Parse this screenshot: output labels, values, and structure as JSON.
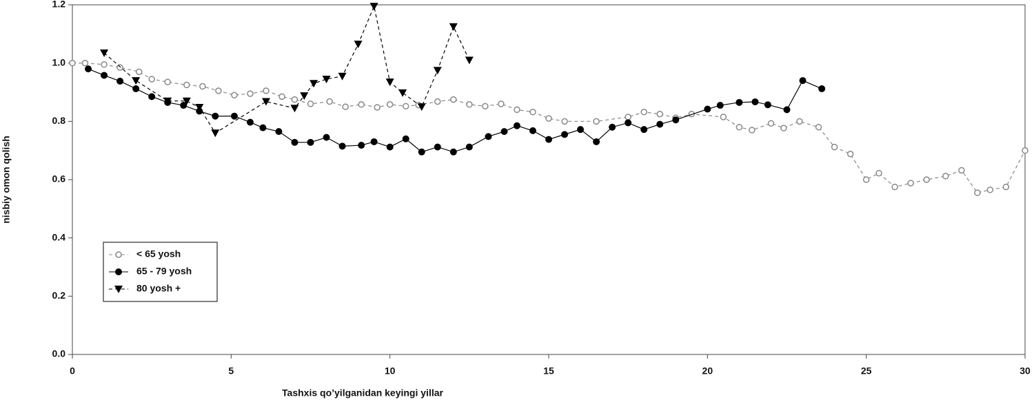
{
  "chart_data": {
    "type": "line",
    "xlabel": "Tashxis qo’yilganidan keyingi yillar",
    "ylabel": "nisbiy omon qolish",
    "xlim": [
      0,
      30
    ],
    "ylim": [
      0,
      1.2
    ],
    "xticks": [
      0,
      5,
      10,
      15,
      20,
      25,
      30
    ],
    "yticks": [
      {
        "value": 0,
        "label": "0.0"
      },
      0.2,
      0.4,
      0.6,
      0.8,
      {
        "value": 1,
        "label": "1.0"
      },
      1.2
    ],
    "legend": "lower left",
    "series": [
      {
        "name": "< 65 yosh",
        "color": "#888888",
        "marker": "open-circle",
        "dashed": true,
        "x": [
          0,
          0.4,
          1,
          1.5,
          2.1,
          2.5,
          3,
          3.6,
          4.1,
          4.6,
          5.1,
          5.6,
          6.1,
          6.6,
          7,
          7.5,
          8.1,
          8.6,
          9.1,
          9.6,
          10,
          10.5,
          10.9,
          11.5,
          12,
          12.5,
          13,
          13.5,
          14,
          14.5,
          15,
          15.5,
          16.5,
          17.5,
          18,
          18.5,
          19,
          19.5,
          20.5,
          21,
          21.4,
          22,
          22.4,
          22.9,
          23.5,
          24,
          24.5,
          25,
          25.4,
          25.9,
          26.4,
          26.9,
          27.5,
          28,
          28.5,
          28.9,
          29.4,
          30
        ],
        "values": [
          1.0,
          1.0,
          0.995,
          0.985,
          0.97,
          0.945,
          0.935,
          0.925,
          0.92,
          0.905,
          0.89,
          0.895,
          0.905,
          0.885,
          0.875,
          0.86,
          0.868,
          0.85,
          0.858,
          0.848,
          0.858,
          0.852,
          0.856,
          0.868,
          0.875,
          0.858,
          0.852,
          0.86,
          0.84,
          0.832,
          0.81,
          0.8,
          0.8,
          0.815,
          0.832,
          0.825,
          0.812,
          0.825,
          0.815,
          0.78,
          0.77,
          0.793,
          0.777,
          0.8,
          0.78,
          0.712,
          0.688,
          0.6,
          0.622,
          0.575,
          0.588,
          0.6,
          0.612,
          0.632,
          0.555,
          0.565,
          0.575,
          0.7
        ]
      },
      {
        "name": "65 - 79 yosh",
        "color": "#000000",
        "marker": "filled-circle",
        "dashed": false,
        "x": [
          0.5,
          1,
          1.5,
          2,
          2.5,
          3,
          3.5,
          4,
          4.5,
          5.1,
          5.6,
          6,
          6.5,
          7,
          7.5,
          8,
          8.5,
          9.1,
          9.5,
          10,
          10.5,
          11,
          11.5,
          12,
          12.5,
          13.1,
          13.6,
          14,
          14.5,
          15,
          15.5,
          16,
          16.5,
          17,
          17.5,
          18,
          18.5,
          19,
          20,
          20.4,
          21,
          21.5,
          21.9,
          22.5,
          23,
          23.6
        ],
        "values": [
          0.98,
          0.958,
          0.938,
          0.912,
          0.885,
          0.865,
          0.855,
          0.835,
          0.818,
          0.818,
          0.797,
          0.778,
          0.765,
          0.728,
          0.728,
          0.745,
          0.715,
          0.718,
          0.73,
          0.712,
          0.74,
          0.695,
          0.712,
          0.695,
          0.712,
          0.748,
          0.765,
          0.785,
          0.768,
          0.738,
          0.755,
          0.772,
          0.73,
          0.78,
          0.795,
          0.772,
          0.79,
          0.805,
          0.842,
          0.855,
          0.865,
          0.867,
          0.857,
          0.84,
          0.94,
          0.912
        ]
      },
      {
        "name": "80 yosh +",
        "color": "#000000",
        "marker": "triangle-down",
        "dashed": true,
        "x": [
          1,
          2,
          3,
          3.6,
          4,
          4.5,
          6.1,
          7,
          7.3,
          7.6,
          8,
          8.5,
          9,
          9.5,
          10,
          10.4,
          11,
          11.5,
          12,
          12.5
        ],
        "values": [
          1.035,
          0.94,
          0.87,
          0.87,
          0.848,
          0.76,
          0.868,
          0.845,
          0.888,
          0.93,
          0.945,
          0.955,
          1.065,
          1.195,
          0.935,
          0.898,
          0.85,
          0.975,
          1.125,
          1.01
        ]
      }
    ]
  }
}
